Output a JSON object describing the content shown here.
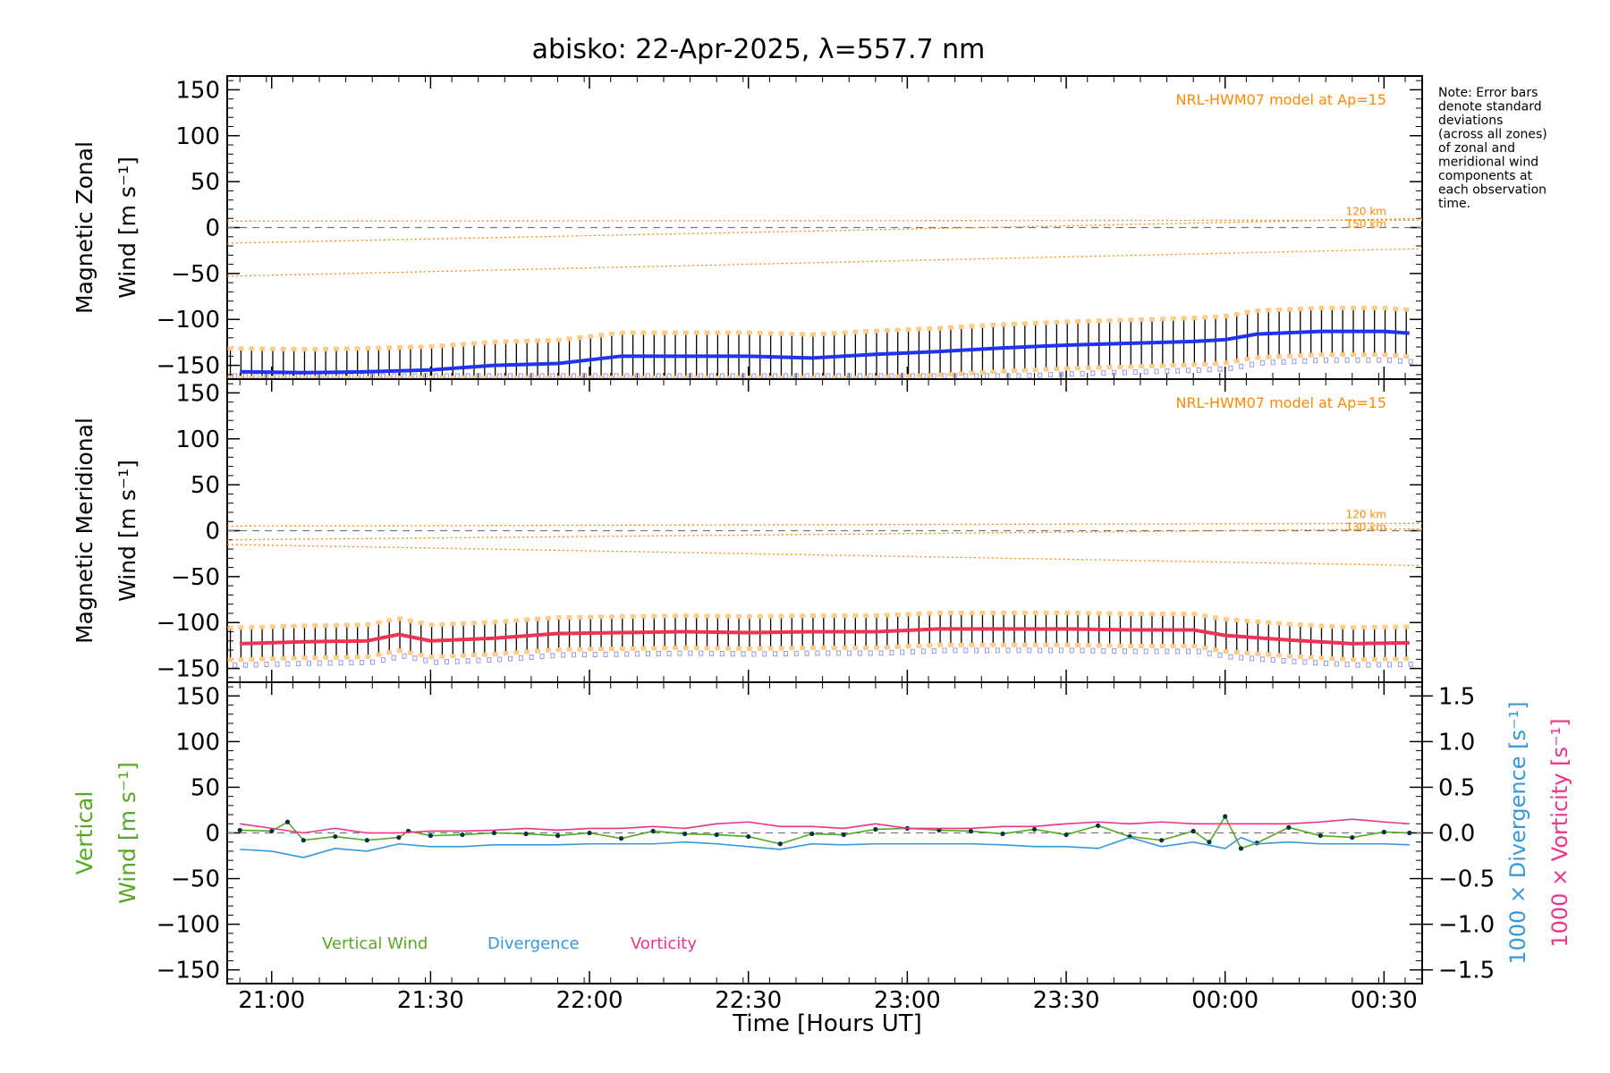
{
  "title": "abisko: 22-Apr-2025, λ=557.7 nm",
  "note": [
    "Note: Error bars",
    "denote standard",
    "deviations",
    "(across all zones)",
    "of zonal and",
    "meridional wind",
    "components at",
    "each observation",
    "time."
  ],
  "colors": {
    "zonal": "#2233ee",
    "meridional": "#ee3355",
    "vertical": "#55aa22",
    "divergence": "#3399dd",
    "vorticity": "#ee3388",
    "model": "#ff8800",
    "errbar": "#000000",
    "zone_marker": "#9999dd",
    "spread": "#ffcc88"
  },
  "xaxis": {
    "label": "Time [Hours UT]",
    "ticks": [
      "21:00",
      "21:30",
      "22:00",
      "22:30",
      "23:00",
      "23:30",
      "00:00",
      "00:30"
    ],
    "tick_hours": [
      21.0,
      21.5,
      22.0,
      22.5,
      23.0,
      23.5,
      24.0,
      24.5
    ],
    "range_hours": [
      20.86,
      24.62
    ]
  },
  "chart_data": [
    {
      "type": "line",
      "panel": "zonal",
      "ylabel": [
        "Magnetic Zonal",
        "Wind [m s⁻¹]"
      ],
      "yticks": [
        150,
        100,
        50,
        0,
        -50,
        -100,
        -150
      ],
      "ylim": [
        -165,
        165
      ],
      "model_label": "NRL-HWM07 model at Ap=15",
      "model_heights": [
        "120 km",
        "150 km"
      ],
      "model_lines": [
        {
          "x": [
            20.86,
            24.62
          ],
          "y": [
            7,
            8
          ]
        },
        {
          "x": [
            20.86,
            24.62
          ],
          "y": [
            -17,
            10
          ]
        },
        {
          "x": [
            20.86,
            24.62
          ],
          "y": [
            -53,
            -23
          ]
        }
      ],
      "x": [
        20.9,
        21.1,
        21.3,
        21.5,
        21.7,
        21.9,
        22.1,
        22.3,
        22.5,
        22.7,
        22.9,
        23.1,
        23.3,
        23.5,
        23.7,
        23.9,
        24.0,
        24.1,
        24.3,
        24.5,
        24.58
      ],
      "y": [
        -157,
        -158,
        -157,
        -155,
        -150,
        -148,
        -140,
        -140,
        -140,
        -142,
        -138,
        -135,
        -131,
        -128,
        -126,
        -124,
        -122,
        -116,
        -113,
        -113,
        -115
      ],
      "err": 25
    },
    {
      "type": "line",
      "panel": "meridional",
      "ylabel": [
        "Magnetic Meridional",
        "Wind [m s⁻¹]"
      ],
      "yticks": [
        150,
        100,
        50,
        0,
        -50,
        -100,
        -150
      ],
      "ylim": [
        -165,
        165
      ],
      "model_label": "NRL-HWM07 model at Ap=15",
      "model_heights": [
        "120 km",
        "130 km"
      ],
      "model_lines": [
        {
          "x": [
            20.86,
            24.62
          ],
          "y": [
            5,
            8
          ]
        },
        {
          "x": [
            20.86,
            24.62
          ],
          "y": [
            -10,
            2
          ]
        },
        {
          "x": [
            20.86,
            24.62
          ],
          "y": [
            -15,
            -38
          ]
        }
      ],
      "x": [
        20.9,
        21.1,
        21.3,
        21.4,
        21.5,
        21.7,
        21.9,
        22.1,
        22.3,
        22.5,
        22.7,
        22.9,
        23.1,
        23.3,
        23.5,
        23.7,
        23.9,
        24.0,
        24.2,
        24.4,
        24.58
      ],
      "y": [
        -123,
        -121,
        -120,
        -113,
        -120,
        -117,
        -112,
        -111,
        -110,
        -111,
        -110,
        -110,
        -107,
        -107,
        -107,
        -108,
        -108,
        -114,
        -119,
        -123,
        -122
      ],
      "err": 17
    },
    {
      "type": "line",
      "panel": "vertical",
      "ylabel_left": [
        "Vertical",
        "Wind [m s⁻¹]"
      ],
      "ylabel_right": [
        "1000 × Divergence [s⁻¹]",
        "1000 × Vorticity [s⁻¹]"
      ],
      "yticks": [
        150,
        100,
        50,
        0,
        -50,
        -100,
        -150
      ],
      "ylim": [
        -165,
        165
      ],
      "yticks_right": [
        "1.5",
        "1.0",
        "0.5",
        "0.0",
        "−0.5",
        "−1.0",
        "−1.5"
      ],
      "ylim_right": [
        -1.65,
        1.65
      ],
      "legend": [
        "Vertical Wind",
        "Divergence",
        "Vorticity"
      ],
      "series": [
        {
          "name": "Vertical Wind",
          "x": [
            20.9,
            21.0,
            21.05,
            21.1,
            21.2,
            21.3,
            21.4,
            21.43,
            21.5,
            21.6,
            21.7,
            21.8,
            21.9,
            22.0,
            22.1,
            22.2,
            22.3,
            22.4,
            22.5,
            22.6,
            22.7,
            22.8,
            22.9,
            23.0,
            23.1,
            23.2,
            23.3,
            23.4,
            23.5,
            23.6,
            23.7,
            23.8,
            23.9,
            23.95,
            24.0,
            24.05,
            24.1,
            24.2,
            24.3,
            24.4,
            24.5,
            24.58
          ],
          "y": [
            3,
            2,
            12,
            -8,
            -4,
            -8,
            -5,
            2,
            -3,
            -2,
            0,
            -1,
            -3,
            0,
            -6,
            2,
            -1,
            -2,
            -4,
            -12,
            -1,
            -2,
            4,
            5,
            3,
            2,
            -1,
            4,
            -2,
            8,
            -4,
            -8,
            2,
            -10,
            18,
            -17,
            -11,
            6,
            -3,
            -5,
            1,
            0
          ]
        },
        {
          "name": "Divergence",
          "x": [
            20.9,
            21.0,
            21.1,
            21.2,
            21.3,
            21.4,
            21.5,
            21.6,
            21.7,
            21.8,
            21.9,
            22.0,
            22.1,
            22.2,
            22.3,
            22.4,
            22.5,
            22.6,
            22.7,
            22.8,
            22.9,
            23.0,
            23.1,
            23.2,
            23.3,
            23.4,
            23.5,
            23.6,
            23.7,
            23.8,
            23.9,
            24.0,
            24.05,
            24.1,
            24.2,
            24.3,
            24.4,
            24.5,
            24.58
          ],
          "y": [
            -0.18,
            -0.2,
            -0.27,
            -0.17,
            -0.2,
            -0.12,
            -0.15,
            -0.15,
            -0.13,
            -0.13,
            -0.13,
            -0.12,
            -0.12,
            -0.12,
            -0.1,
            -0.12,
            -0.15,
            -0.18,
            -0.12,
            -0.13,
            -0.12,
            -0.12,
            -0.12,
            -0.12,
            -0.13,
            -0.15,
            -0.15,
            -0.17,
            -0.05,
            -0.15,
            -0.1,
            -0.17,
            -0.05,
            -0.12,
            -0.1,
            -0.12,
            -0.12,
            -0.12,
            -0.13
          ]
        },
        {
          "name": "Vorticity",
          "x": [
            20.9,
            21.0,
            21.1,
            21.2,
            21.3,
            21.4,
            21.5,
            21.6,
            21.7,
            21.8,
            21.9,
            22.0,
            22.1,
            22.2,
            22.3,
            22.4,
            22.5,
            22.6,
            22.7,
            22.8,
            22.9,
            23.0,
            23.1,
            23.2,
            23.3,
            23.4,
            23.5,
            23.6,
            23.7,
            23.8,
            23.9,
            24.0,
            24.1,
            24.2,
            24.3,
            24.4,
            24.5,
            24.58
          ],
          "y": [
            0.1,
            0.05,
            0.0,
            0.05,
            0.0,
            0.0,
            0.02,
            0.02,
            0.03,
            0.05,
            0.03,
            0.05,
            0.05,
            0.07,
            0.05,
            0.1,
            0.12,
            0.07,
            0.07,
            0.05,
            0.1,
            0.05,
            0.05,
            0.05,
            0.07,
            0.07,
            0.1,
            0.12,
            0.1,
            0.12,
            0.1,
            0.1,
            0.1,
            0.1,
            0.12,
            0.15,
            0.12,
            0.1
          ]
        }
      ]
    }
  ]
}
